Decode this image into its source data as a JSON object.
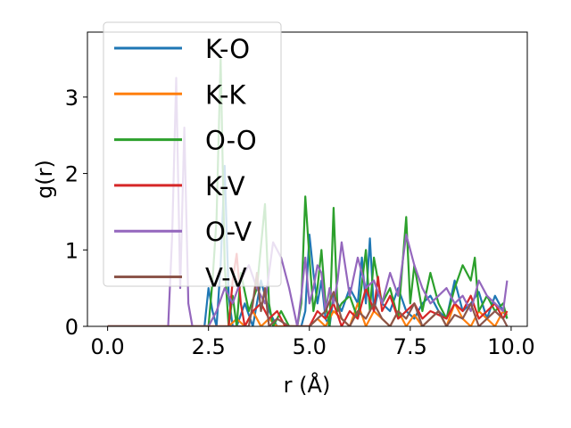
{
  "chart_data": {
    "type": "line",
    "xlabel": "r (Å)",
    "ylabel": "g(r)",
    "xlim": [
      -0.5,
      10.4
    ],
    "ylim": [
      0,
      3.85
    ],
    "xticks": [
      0.0,
      2.5,
      5.0,
      7.5,
      10.0
    ],
    "xtick_labels": [
      "0.0",
      "2.5",
      "5.0",
      "7.5",
      "10.0"
    ],
    "yticks": [
      0,
      1,
      2,
      3
    ],
    "ytick_labels": [
      "0",
      "1",
      "2",
      "3"
    ],
    "grid": false,
    "legend": {
      "position": "upper-left",
      "entries": [
        "K-O",
        "K-K",
        "O-O",
        "K-V",
        "O-V",
        "V-V"
      ]
    },
    "series": [
      {
        "name": "K-O",
        "color": "#1f77b4",
        "x": [
          0.0,
          2.4,
          2.5,
          2.6,
          2.7,
          2.8,
          2.9,
          3.0,
          3.1,
          3.2,
          3.4,
          3.6,
          3.8,
          4.0,
          4.2,
          4.4,
          4.6,
          4.8,
          4.9,
          5.0,
          5.1,
          5.2,
          5.3,
          5.4,
          5.5,
          5.6,
          5.8,
          6.0,
          6.2,
          6.3,
          6.4,
          6.5,
          6.6,
          6.7,
          6.8,
          7.0,
          7.2,
          7.4,
          7.6,
          7.8,
          8.0,
          8.2,
          8.4,
          8.6,
          8.8,
          9.0,
          9.2,
          9.4,
          9.6,
          9.8,
          9.9
        ],
        "y": [
          0,
          0,
          0.5,
          0.2,
          0,
          0.8,
          2.1,
          0.4,
          0,
          0,
          0.3,
          0,
          0.6,
          0.2,
          0,
          0,
          0,
          0,
          0.2,
          1.2,
          0.7,
          0.3,
          0.6,
          0.1,
          0,
          0.4,
          0.2,
          0.5,
          0.3,
          0.9,
          0.3,
          1.15,
          0.2,
          0.45,
          0.3,
          0.2,
          0.5,
          0.2,
          0.1,
          0.3,
          0.4,
          0.2,
          0.1,
          0.6,
          0.2,
          0.3,
          0.45,
          0.1,
          0.4,
          0.2,
          0.1
        ]
      },
      {
        "name": "K-K",
        "color": "#ff7f0e",
        "x": [
          0.0,
          3.0,
          3.2,
          3.4,
          3.6,
          3.8,
          4.0,
          4.2,
          4.4,
          5.0,
          5.2,
          5.4,
          5.6,
          5.8,
          6.0,
          6.2,
          6.4,
          6.6,
          6.8,
          7.0,
          7.2,
          7.4,
          7.6,
          7.8,
          8.0,
          8.2,
          8.4,
          8.6,
          8.8,
          9.0,
          9.2,
          9.4,
          9.6,
          9.8,
          9.9
        ],
        "y": [
          0,
          0,
          0.1,
          0,
          0.2,
          0,
          0.1,
          0,
          0,
          0,
          0.1,
          0,
          0.2,
          0.1,
          0,
          0.3,
          0,
          0.2,
          0.1,
          0,
          0.2,
          0,
          0.15,
          0,
          0.1,
          0.2,
          0,
          0.3,
          0.1,
          0,
          0.2,
          0.1,
          0,
          0.2,
          0.15
        ]
      },
      {
        "name": "O-O",
        "color": "#2ca02c",
        "x": [
          0.0,
          2.5,
          2.6,
          2.7,
          2.8,
          2.9,
          3.0,
          3.1,
          3.2,
          3.3,
          3.5,
          3.7,
          3.9,
          4.0,
          4.1,
          4.3,
          4.5,
          4.7,
          4.8,
          4.9,
          5.0,
          5.1,
          5.2,
          5.3,
          5.4,
          5.5,
          5.6,
          5.7,
          5.8,
          6.0,
          6.2,
          6.4,
          6.5,
          6.6,
          6.8,
          7.0,
          7.2,
          7.4,
          7.5,
          7.6,
          7.8,
          8.0,
          8.2,
          8.4,
          8.6,
          8.8,
          9.0,
          9.1,
          9.2,
          9.4,
          9.6,
          9.8,
          9.9
        ],
        "y": [
          0,
          0,
          0.6,
          1.4,
          3.5,
          0.8,
          0,
          0.4,
          0,
          0.7,
          0.2,
          0.5,
          1.6,
          0.3,
          0,
          0.2,
          0,
          0,
          0.3,
          1.7,
          0.9,
          0.2,
          0.5,
          1.0,
          0.3,
          0,
          1.55,
          0.2,
          0.3,
          0.4,
          0.1,
          1.0,
          0.2,
          0.9,
          0.3,
          0.5,
          0.1,
          1.43,
          0.3,
          0.8,
          0.2,
          0.7,
          0.3,
          0.1,
          0.5,
          0.8,
          0.6,
          0.9,
          0.2,
          0.4,
          0.2,
          0.3,
          0.1
        ]
      },
      {
        "name": "K-V",
        "color": "#d62728",
        "x": [
          0.0,
          3.0,
          3.1,
          3.2,
          3.3,
          3.4,
          3.6,
          3.8,
          4.0,
          4.2,
          4.4,
          5.0,
          5.2,
          5.4,
          5.6,
          5.8,
          6.0,
          6.2,
          6.4,
          6.6,
          6.7,
          6.8,
          7.0,
          7.2,
          7.4,
          7.6,
          7.8,
          8.0,
          8.2,
          8.4,
          8.6,
          8.8,
          9.0,
          9.2,
          9.4,
          9.6,
          9.8,
          9.9
        ],
        "y": [
          0,
          0,
          0.6,
          0.95,
          0.3,
          0,
          0.2,
          0.3,
          0.1,
          0.2,
          0,
          0,
          0.2,
          0.1,
          0.3,
          0,
          0.2,
          0.1,
          0.5,
          0.2,
          0.65,
          0.2,
          0.4,
          0.1,
          0.2,
          0.3,
          0.1,
          0.2,
          0.15,
          0.1,
          0.3,
          0.2,
          0.4,
          0.1,
          0.2,
          0.3,
          0.1,
          0.2
        ]
      },
      {
        "name": "O-V",
        "color": "#9467bd",
        "x": [
          0.0,
          1.5,
          1.6,
          1.7,
          1.8,
          1.9,
          2.0,
          2.1,
          2.3,
          2.5,
          2.7,
          2.9,
          3.1,
          3.3,
          3.5,
          3.7,
          3.9,
          4.1,
          4.3,
          4.5,
          4.7,
          4.8,
          4.9,
          5.0,
          5.1,
          5.2,
          5.3,
          5.4,
          5.5,
          5.6,
          5.7,
          5.8,
          6.0,
          6.2,
          6.4,
          6.6,
          6.8,
          7.0,
          7.2,
          7.4,
          7.6,
          7.8,
          8.0,
          8.2,
          8.4,
          8.6,
          8.8,
          9.0,
          9.2,
          9.4,
          9.6,
          9.8,
          9.9
        ],
        "y": [
          0,
          0,
          1.2,
          3.25,
          0.5,
          2.6,
          0.3,
          0,
          0,
          0,
          0.2,
          0.5,
          0.3,
          0.6,
          0.8,
          0.5,
          0.3,
          1.1,
          0.9,
          0.5,
          0,
          0.4,
          0.9,
          0.3,
          0.5,
          0.8,
          0.7,
          0.2,
          0.5,
          0.3,
          0.6,
          1.1,
          0.4,
          0.9,
          0.5,
          0.6,
          0.3,
          0.7,
          0.4,
          1.2,
          0.8,
          0.5,
          0.3,
          0.4,
          0.5,
          0.3,
          0.4,
          0.2,
          0.6,
          0.4,
          0.3,
          0.2,
          0.6
        ]
      },
      {
        "name": "V-V",
        "color": "#8c564b",
        "x": [
          0.0,
          3.5,
          3.6,
          3.7,
          3.8,
          3.9,
          4.0,
          4.2,
          4.5,
          5.0,
          5.2,
          5.4,
          5.6,
          5.8,
          6.0,
          6.2,
          6.4,
          6.6,
          6.8,
          7.0,
          7.2,
          7.4,
          7.6,
          7.8,
          8.0,
          8.2,
          8.4,
          8.6,
          8.8,
          9.0,
          9.2,
          9.4,
          9.6,
          9.8,
          9.9
        ],
        "y": [
          0,
          0,
          0.3,
          0.7,
          0.2,
          0.5,
          0,
          0.1,
          0,
          0,
          0.1,
          0.2,
          0.45,
          0.1,
          0,
          0.2,
          0.1,
          0.3,
          0.1,
          0,
          0.2,
          0.1,
          0.3,
          0,
          0.1,
          0.2,
          0,
          0.15,
          0.1,
          0.3,
          0,
          0.1,
          0.2,
          0.1,
          0
        ]
      }
    ]
  }
}
